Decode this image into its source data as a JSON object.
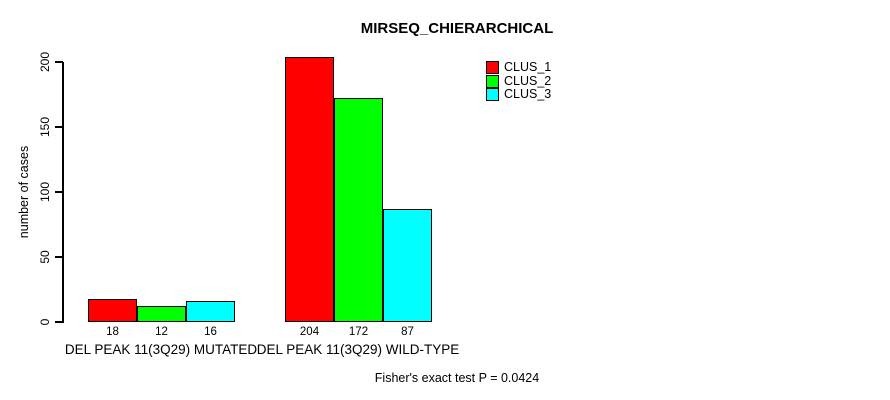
{
  "chart_data": {
    "type": "bar",
    "title": "MIRSEQ_CHIERARCHICAL",
    "ylabel": "number of cases",
    "xlabel": "",
    "categories": [
      "DEL PEAK 11(3Q29) MUTATED",
      "DEL PEAK 11(3Q29) WILD-TYPE"
    ],
    "series": [
      {
        "name": "CLUS_1",
        "color": "#FF0000",
        "values": [
          18,
          204
        ]
      },
      {
        "name": "CLUS_2",
        "color": "#00FF00",
        "values": [
          12,
          172
        ]
      },
      {
        "name": "CLUS_3",
        "color": "#00FFFF",
        "values": [
          16,
          87
        ]
      }
    ],
    "yticks": [
      0,
      50,
      100,
      150,
      200
    ],
    "ylim": [
      0,
      200
    ],
    "grid": false,
    "legend_position": "top-right",
    "bar_value_labels_shown": true,
    "footnote": "Fisher's exact test P = 0.0424"
  }
}
